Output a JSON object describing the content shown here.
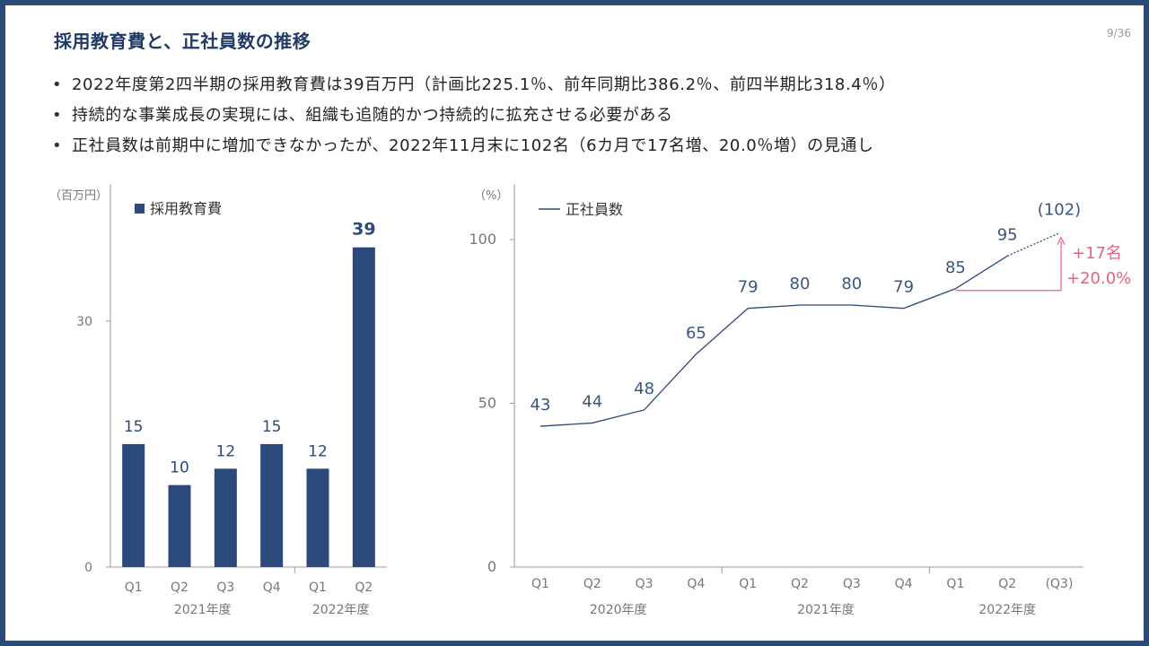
{
  "slide": {
    "title": "採用教育費と、正社員数の推移",
    "page": "9/36",
    "bullets": [
      "2022年度第2四半期の採用教育費は39百万円（計画比225.1％、前年同期比386.2％、前四半期比318.4％）",
      "持続的な事業成長の実現には、組織も追随的かつ持続的に拡充させる必要がある",
      "正社員数は前期中に増加できなかったが、2022年11月末に102名（6カ月で17名増、20.0％増）の見通し"
    ]
  },
  "colors": {
    "navy": "#2b4a7b",
    "accent": "#e5637f",
    "text_gray": "#777777"
  },
  "chart_data": [
    {
      "type": "bar",
      "unit_label": "（百万円）",
      "legend": [
        "採用教育費"
      ],
      "legend_position": "top-left",
      "categories": [
        "Q1",
        "Q2",
        "Q3",
        "Q4",
        "Q1",
        "Q2"
      ],
      "groups": [
        {
          "label": "2021年度",
          "from": 0,
          "to": 3
        },
        {
          "label": "2022年度",
          "from": 4,
          "to": 5
        }
      ],
      "series": [
        {
          "name": "採用教育費",
          "values": [
            15,
            10,
            12,
            15,
            12,
            39
          ]
        }
      ],
      "ylim": [
        0,
        44
      ],
      "yticks": [
        0,
        30
      ],
      "data_labels": [
        "15",
        "10",
        "12",
        "15",
        "12",
        "39"
      ],
      "grid": false
    },
    {
      "type": "line",
      "unit_label": "（%）",
      "legend": [
        "正社員数"
      ],
      "legend_position": "top-left",
      "categories": [
        "Q1",
        "Q2",
        "Q3",
        "Q4",
        "Q1",
        "Q2",
        "Q3",
        "Q4",
        "Q1",
        "Q2",
        "(Q3)"
      ],
      "groups": [
        {
          "label": "2020年度",
          "from": 0,
          "to": 3
        },
        {
          "label": "2021年度",
          "from": 4,
          "to": 7
        },
        {
          "label": "2022年度",
          "from": 8,
          "to": 10
        }
      ],
      "series": [
        {
          "name": "正社員数",
          "values": [
            43,
            44,
            48,
            65,
            79,
            80,
            80,
            79,
            85,
            95,
            102
          ],
          "projected_from_index": 9
        }
      ],
      "data_labels": [
        "43",
        "44",
        "48",
        "65",
        "79",
        "80",
        "80",
        "79",
        "85",
        "95",
        "(102)"
      ],
      "ylim": [
        0,
        117
      ],
      "yticks": [
        0,
        50,
        100
      ],
      "annotation": {
        "line1": "+17名",
        "line2": "+20.0%",
        "from_index": 8,
        "to_index": 10
      },
      "grid": false
    }
  ]
}
